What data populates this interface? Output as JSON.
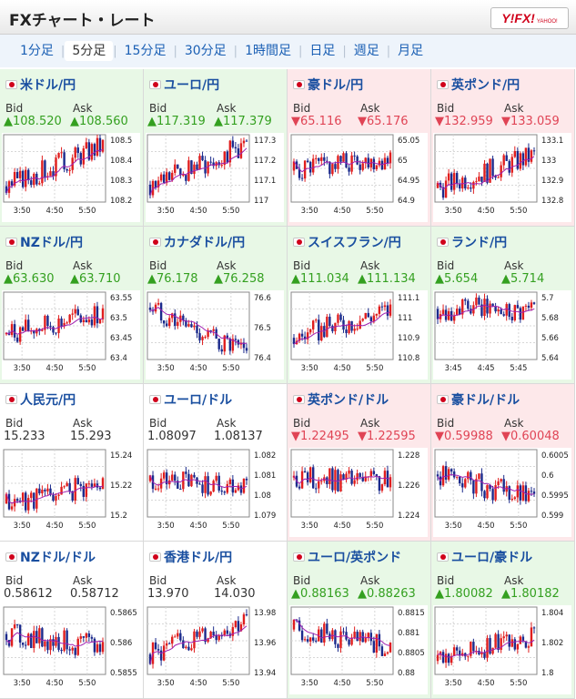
{
  "header": {
    "title": "FXチャート・レート",
    "logo_text": "Y!FX!",
    "logo_sub": "YAHOO!"
  },
  "tabs": [
    {
      "label": "1分足"
    },
    {
      "label": "5分足",
      "active": true
    },
    {
      "label": "15分足"
    },
    {
      "label": "30分足"
    },
    {
      "label": "1時間足"
    },
    {
      "label": "日足"
    },
    {
      "label": "週足"
    },
    {
      "label": "月足"
    }
  ],
  "labels": {
    "bid": "Bid",
    "ask": "Ask"
  },
  "colors": {
    "up": "#34a020",
    "down": "#e04455",
    "neutral": "#333333",
    "candle_up": "#e01e1e",
    "candle_down": "#1b2a8c",
    "ma": "#a020b0"
  },
  "pairs": [
    {
      "name": "米ドル/円",
      "dir": "up",
      "bid": "▲108.520",
      "ask": "▲108.560",
      "yticks": [
        "108.5",
        "108.4",
        "108.3",
        "108.2"
      ],
      "xticks": [
        "3:50",
        "4:50",
        "5:50"
      ],
      "chart_data": {
        "type": "line",
        "start": 108.26,
        "end": 108.47,
        "min": 108.18,
        "max": 108.52
      }
    },
    {
      "name": "ユーロ/円",
      "dir": "up",
      "bid": "▲117.319",
      "ask": "▲117.379",
      "yticks": [
        "117.3",
        "117.2",
        "117.1",
        "117"
      ],
      "xticks": [
        "3:50",
        "4:50",
        "5:50"
      ],
      "chart_data": {
        "type": "line",
        "start": 117.1,
        "end": 117.28,
        "min": 117.02,
        "max": 117.33
      }
    },
    {
      "name": "豪ドル/円",
      "dir": "down",
      "bid": "▼65.116",
      "ask": "▼65.176",
      "yticks": [
        "65.05",
        "65",
        "64.95",
        "64.9"
      ],
      "xticks": [
        "3:50",
        "4:50",
        "5:50"
      ],
      "chart_data": {
        "type": "line",
        "start": 64.98,
        "end": 65.01,
        "min": 64.91,
        "max": 65.06
      }
    },
    {
      "name": "英ポンド/円",
      "dir": "down",
      "bid": "▼132.959",
      "ask": "▼133.059",
      "yticks": [
        "133.1",
        "133",
        "132.9",
        "132.8"
      ],
      "xticks": [
        "3:50",
        "4:50",
        "5:50"
      ],
      "chart_data": {
        "type": "line",
        "start": 132.9,
        "end": 133.04,
        "min": 132.84,
        "max": 133.13
      }
    },
    {
      "name": "NZドル/円",
      "dir": "up",
      "bid": "▲63.630",
      "ask": "▲63.710",
      "yticks": [
        "63.55",
        "63.5",
        "63.45",
        "63.4"
      ],
      "xticks": [
        "3:50",
        "4:50",
        "5:50"
      ],
      "chart_data": {
        "type": "line",
        "start": 63.47,
        "end": 63.52,
        "min": 63.41,
        "max": 63.57
      }
    },
    {
      "name": "カナダドル/円",
      "dir": "up",
      "bid": "▲76.178",
      "ask": "▲76.258",
      "yticks": [
        "76.6",
        "76.5",
        "76.4"
      ],
      "xticks": [
        "3:50",
        "4:50",
        "5:50"
      ],
      "chart_data": {
        "type": "line",
        "start": 76.6,
        "end": 76.35,
        "min": 76.33,
        "max": 76.68
      }
    },
    {
      "name": "スイスフラン/円",
      "dir": "up",
      "bid": "▲111.034",
      "ask": "▲111.134",
      "yticks": [
        "111.1",
        "111",
        "110.9",
        "110.8"
      ],
      "xticks": [
        "3:50",
        "4:50",
        "5:50"
      ],
      "chart_data": {
        "type": "line",
        "start": 110.92,
        "end": 111.05,
        "min": 110.82,
        "max": 111.13
      }
    },
    {
      "name": "ランド/円",
      "dir": "up",
      "bid": "▲5.654",
      "ask": "▲5.714",
      "yticks": [
        "5.7",
        "5.68",
        "5.66",
        "5.64"
      ],
      "xticks": [
        "3:45",
        "4:45",
        "5:45"
      ],
      "chart_data": {
        "type": "line",
        "start": 5.69,
        "end": 5.69,
        "min": 5.645,
        "max": 5.705
      }
    },
    {
      "name": "人民元/円",
      "dir": "neutral",
      "bid": "15.233",
      "ask": "15.293",
      "yticks": [
        "15.24",
        "15.22",
        "15.2"
      ],
      "xticks": [
        "3:50",
        "4:50",
        "5:50"
      ],
      "chart_data": {
        "type": "line",
        "start": 15.21,
        "end": 15.225,
        "min": 15.2,
        "max": 15.25
      }
    },
    {
      "name": "ユーロ/ドル",
      "dir": "neutral",
      "bid": "1.08097",
      "ask": "1.08137",
      "yticks": [
        "1.082",
        "1.081",
        "1.08",
        "1.079"
      ],
      "xticks": [
        "3:50",
        "4:50",
        "5:50"
      ],
      "chart_data": {
        "type": "line",
        "start": 1.0808,
        "end": 1.0806,
        "min": 1.0792,
        "max": 1.0822
      }
    },
    {
      "name": "英ポンド/ドル",
      "dir": "down",
      "bid": "▼1.22495",
      "ask": "▼1.22595",
      "yticks": [
        "1.228",
        "1.226",
        "1.224"
      ],
      "xticks": [
        "3:50",
        "4:50",
        "5:50"
      ],
      "chart_data": {
        "type": "line",
        "start": 1.2265,
        "end": 1.2262,
        "min": 1.2241,
        "max": 1.2282
      }
    },
    {
      "name": "豪ドル/ドル",
      "dir": "down",
      "bid": "▼0.59988",
      "ask": "▼0.60048",
      "yticks": [
        "0.6005",
        "0.6",
        "0.5995",
        "0.599"
      ],
      "xticks": [
        "3:50",
        "4:50",
        "5:50"
      ],
      "chart_data": {
        "type": "line",
        "start": 0.6,
        "end": 0.5993,
        "min": 0.5988,
        "max": 0.6007
      }
    },
    {
      "name": "NZドル/ドル",
      "dir": "neutral",
      "bid": "0.58612",
      "ask": "0.58712",
      "yticks": [
        "0.5865",
        "0.586",
        "0.5855"
      ],
      "xticks": [
        "3:50",
        "4:50",
        "5:50"
      ],
      "chart_data": {
        "type": "line",
        "start": 0.5861,
        "end": 0.5858,
        "min": 0.5852,
        "max": 0.5867
      }
    },
    {
      "name": "香港ドル/円",
      "dir": "neutral",
      "bid": "13.970",
      "ask": "14.030",
      "yticks": [
        "13.98",
        "13.96",
        "13.94"
      ],
      "xticks": [
        "3:50",
        "4:50",
        "5:50"
      ],
      "chart_data": {
        "type": "line",
        "start": 13.95,
        "end": 13.975,
        "min": 13.935,
        "max": 13.985
      }
    },
    {
      "name": "ユーロ/英ポンド",
      "dir": "up",
      "bid": "▲0.88163",
      "ask": "▲0.88263",
      "yticks": [
        "0.8815",
        "0.881",
        "0.8805",
        "0.88"
      ],
      "xticks": [
        "3:50",
        "4:50",
        "5:50"
      ],
      "chart_data": {
        "type": "line",
        "start": 0.8812,
        "end": 0.8807,
        "min": 0.88,
        "max": 0.8818
      }
    },
    {
      "name": "ユーロ/豪ドル",
      "dir": "up",
      "bid": "▲1.80082",
      "ask": "▲1.80182",
      "yticks": [
        "1.804",
        "1.802",
        "1.8"
      ],
      "xticks": [
        "3:50",
        "4:50",
        "5:50"
      ],
      "chart_data": {
        "type": "line",
        "start": 1.8005,
        "end": 1.8025,
        "min": 1.7995,
        "max": 1.8045
      }
    }
  ]
}
